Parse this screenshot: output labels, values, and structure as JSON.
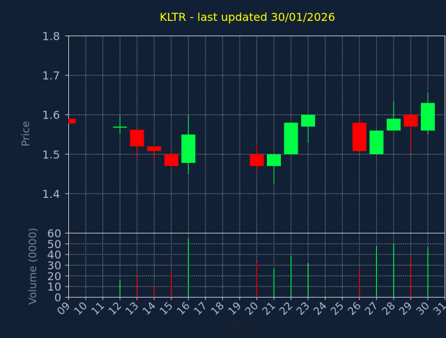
{
  "chart_data": [
    {
      "type": "candlestick",
      "title": "KLTR - last updated 30/01/2026",
      "ylabel": "Price",
      "ylim": [
        1.3,
        1.8
      ],
      "yticks": [
        "1.4",
        "1.5",
        "1.6",
        "1.7",
        "1.8"
      ],
      "grid": true,
      "candles": [
        {
          "day": 9,
          "open": 1.59,
          "close": 1.578,
          "high": 1.59,
          "low": 1.578
        },
        {
          "day": 12,
          "open": 1.568,
          "close": 1.57,
          "high": 1.598,
          "low": 1.552
        },
        {
          "day": 13,
          "open": 1.562,
          "close": 1.52,
          "high": 1.562,
          "low": 1.49
        },
        {
          "day": 14,
          "open": 1.52,
          "close": 1.508,
          "high": 1.52,
          "low": 1.478
        },
        {
          "day": 15,
          "open": 1.5,
          "close": 1.47,
          "high": 1.508,
          "low": 1.47
        },
        {
          "day": 16,
          "open": 1.478,
          "close": 1.55,
          "high": 1.6,
          "low": 1.45
        },
        {
          "day": 20,
          "open": 1.5,
          "close": 1.47,
          "high": 1.525,
          "low": 1.458
        },
        {
          "day": 21,
          "open": 1.47,
          "close": 1.5,
          "high": 1.5,
          "low": 1.425
        },
        {
          "day": 22,
          "open": 1.5,
          "close": 1.58,
          "high": 1.58,
          "low": 1.5
        },
        {
          "day": 23,
          "open": 1.57,
          "close": 1.6,
          "high": 1.6,
          "low": 1.528
        },
        {
          "day": 26,
          "open": 1.58,
          "close": 1.508,
          "high": 1.59,
          "low": 1.508
        },
        {
          "day": 27,
          "open": 1.5,
          "close": 1.56,
          "high": 1.56,
          "low": 1.5
        },
        {
          "day": 28,
          "open": 1.56,
          "close": 1.59,
          "high": 1.635,
          "low": 1.56
        },
        {
          "day": 29,
          "open": 1.6,
          "close": 1.57,
          "high": 1.6,
          "low": 1.505
        },
        {
          "day": 30,
          "open": 1.56,
          "close": 1.63,
          "high": 1.655,
          "low": 1.55
        }
      ]
    },
    {
      "type": "bar",
      "ylabel": "Volume (0000)",
      "xlabel": "Day",
      "ylim": [
        0,
        60
      ],
      "yticks": [
        "0",
        "10",
        "20",
        "30",
        "40",
        "50",
        "60"
      ],
      "grid": true,
      "categories": [
        "09",
        "10",
        "11",
        "12",
        "13",
        "14",
        "15",
        "16",
        "17",
        "18",
        "19",
        "20",
        "21",
        "22",
        "23",
        "24",
        "25",
        "26",
        "27",
        "28",
        "29",
        "30",
        "31"
      ],
      "bars": [
        {
          "day": 12,
          "value": 16,
          "direction": "up"
        },
        {
          "day": 13,
          "value": 21,
          "direction": "down"
        },
        {
          "day": 14,
          "value": 11,
          "direction": "down"
        },
        {
          "day": 15,
          "value": 25,
          "direction": "down"
        },
        {
          "day": 16,
          "value": 55,
          "direction": "up"
        },
        {
          "day": 20,
          "value": 34,
          "direction": "down"
        },
        {
          "day": 21,
          "value": 27,
          "direction": "up"
        },
        {
          "day": 22,
          "value": 39,
          "direction": "up"
        },
        {
          "day": 23,
          "value": 32,
          "direction": "up"
        },
        {
          "day": 26,
          "value": 27,
          "direction": "down"
        },
        {
          "day": 27,
          "value": 48,
          "direction": "up"
        },
        {
          "day": 28,
          "value": 50,
          "direction": "up"
        },
        {
          "day": 29,
          "value": 37,
          "direction": "down"
        },
        {
          "day": 30,
          "value": 47,
          "direction": "up"
        }
      ]
    }
  ],
  "colors": {
    "background": "#112035",
    "title": "#ffff00",
    "axis_text": "#b0b8c8",
    "axis_label": "#7088a0",
    "grid": "#c8c8c8",
    "up": "#00ff44",
    "down": "#ff0000"
  }
}
